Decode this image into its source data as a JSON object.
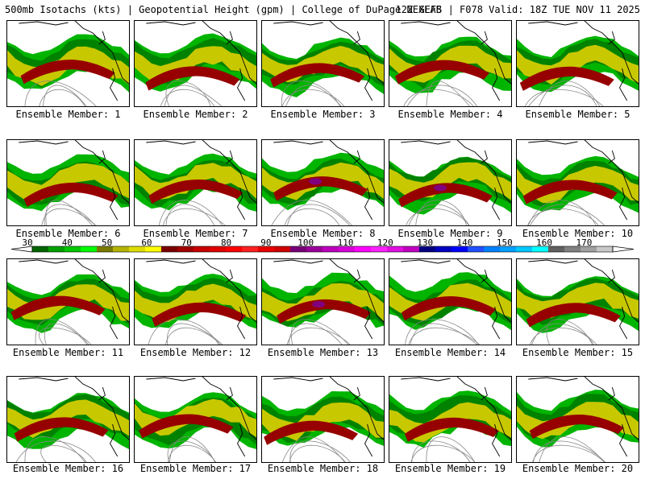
{
  "header": {
    "left": "500mb Isotachs (kts) | Geopotential Height (gpm) | College of DuPage NEXLAB",
    "right": "12Z GEFS | F078 Valid: 18Z TUE NOV 11 2025"
  },
  "panel_label_prefix": "Ensemble Member: ",
  "members": [
    {
      "label": "Ensemble Member: 1"
    },
    {
      "label": "Ensemble Member: 2"
    },
    {
      "label": "Ensemble Member: 3"
    },
    {
      "label": "Ensemble Member: 4"
    },
    {
      "label": "Ensemble Member: 5"
    },
    {
      "label": "Ensemble Member: 6"
    },
    {
      "label": "Ensemble Member: 7"
    },
    {
      "label": "Ensemble Member: 8"
    },
    {
      "label": "Ensemble Member: 9"
    },
    {
      "label": "Ensemble Member: 10"
    },
    {
      "label": "Ensemble Member: 11"
    },
    {
      "label": "Ensemble Member: 12"
    },
    {
      "label": "Ensemble Member: 13"
    },
    {
      "label": "Ensemble Member: 14"
    },
    {
      "label": "Ensemble Member: 15"
    },
    {
      "label": "Ensemble Member: 16"
    },
    {
      "label": "Ensemble Member: 17"
    },
    {
      "label": "Ensemble Member: 18"
    },
    {
      "label": "Ensemble Member: 19"
    },
    {
      "label": "Ensemble Member: 20"
    }
  ],
  "colorbar": {
    "tick_labels": [
      "30",
      "40",
      "50",
      "60",
      "70",
      "80",
      "90",
      "100",
      "110",
      "120",
      "130",
      "140",
      "150",
      "160",
      "170"
    ],
    "colors": [
      "#006400",
      "#00a000",
      "#00c800",
      "#00ff00",
      "#7a7a00",
      "#b4b400",
      "#dcdc00",
      "#ffff00",
      "#7a0000",
      "#a00000",
      "#c80000",
      "#e00000",
      "#ff0000",
      "#ff2020",
      "#e80000",
      "#d00000",
      "#780078",
      "#9a009a",
      "#bc00bc",
      "#d800d8",
      "#ff00ff",
      "#ff20ff",
      "#e010e0",
      "#c000c0",
      "#000080",
      "#0000c0",
      "#0000ff",
      "#2050ff",
      "#0080ff",
      "#00a0ff",
      "#00c8ff",
      "#00ffff",
      "#606060",
      "#808080",
      "#a0a0a0",
      "#c8c8c8"
    ]
  },
  "map_colors": {
    "fill_green": "#00b400",
    "fill_dark_green": "#008200",
    "fill_yellow": "#c8c800",
    "fill_maroon": "#960000",
    "fill_purple": "#800080",
    "height_contour": "#888888",
    "coastline": "#000000"
  }
}
